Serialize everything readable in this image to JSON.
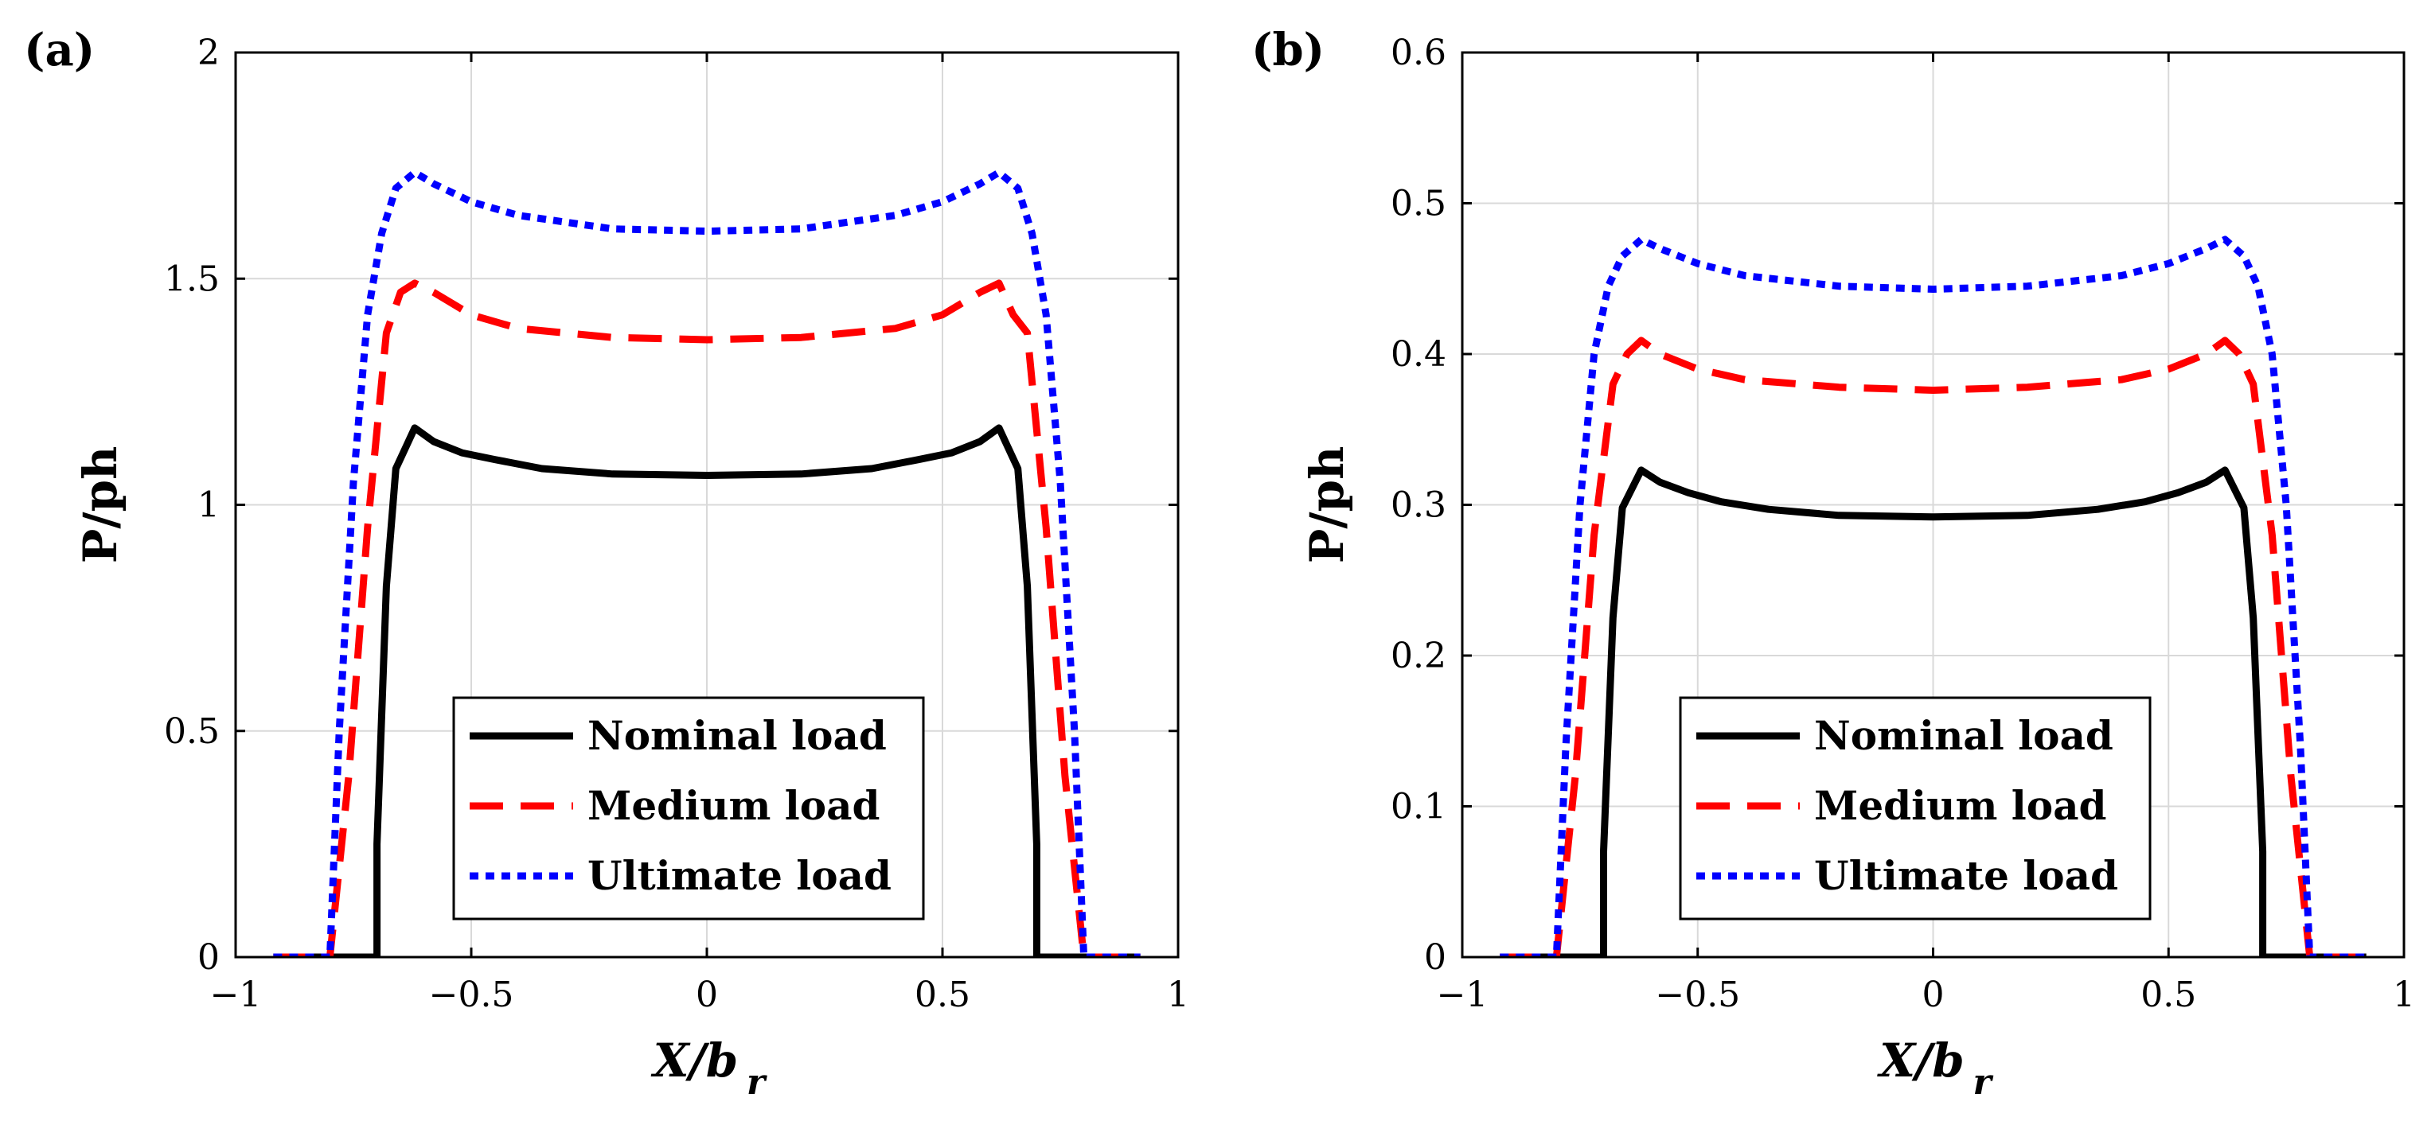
{
  "chart_data": [
    {
      "panel_label": "(a)",
      "type": "line",
      "xlabel": "X/b",
      "xlabel_subscript": "r",
      "ylabel": "P/ph",
      "xlim": [
        -1,
        1
      ],
      "ylim": [
        0,
        2
      ],
      "xticks": [
        -1,
        -0.5,
        0,
        0.5,
        1
      ],
      "xtick_labels": [
        "−1",
        "−0.5",
        "0",
        "0.5",
        "1"
      ],
      "yticks": [
        0,
        0.5,
        1,
        1.5,
        2
      ],
      "ytick_labels": [
        "0",
        "0.5",
        "1",
        "1.5",
        "2"
      ],
      "grid": true,
      "legend_position": "bottom-center",
      "series": [
        {
          "name": "Nominal load",
          "color": "#000000",
          "style": "solid",
          "x": [
            -0.92,
            -0.7,
            -0.7,
            -0.68,
            -0.66,
            -0.62,
            -0.58,
            -0.52,
            -0.45,
            -0.35,
            -0.2,
            0,
            0.2,
            0.35,
            0.45,
            0.52,
            0.58,
            0.62,
            0.66,
            0.68,
            0.7,
            0.7,
            0.92
          ],
          "y": [
            0,
            0,
            0.25,
            0.82,
            1.08,
            1.17,
            1.14,
            1.115,
            1.1,
            1.08,
            1.068,
            1.065,
            1.068,
            1.08,
            1.1,
            1.115,
            1.14,
            1.17,
            1.08,
            0.82,
            0.25,
            0,
            0
          ]
        },
        {
          "name": "Medium load",
          "color": "#ff0000",
          "style": "dashed",
          "x": [
            -0.92,
            -0.8,
            -0.76,
            -0.72,
            -0.68,
            -0.65,
            -0.62,
            -0.58,
            -0.5,
            -0.4,
            -0.2,
            0,
            0.2,
            0.4,
            0.5,
            0.58,
            0.62,
            0.65,
            0.68,
            0.72,
            0.76,
            0.8,
            0.92
          ],
          "y": [
            0,
            0,
            0.4,
            0.95,
            1.38,
            1.47,
            1.49,
            1.47,
            1.42,
            1.39,
            1.37,
            1.365,
            1.37,
            1.39,
            1.42,
            1.47,
            1.49,
            1.42,
            1.38,
            0.95,
            0.4,
            0,
            0
          ]
        },
        {
          "name": "Ultimate load",
          "color": "#0000ff",
          "style": "dotted",
          "x": [
            -0.92,
            -0.8,
            -0.78,
            -0.75,
            -0.72,
            -0.69,
            -0.66,
            -0.62,
            -0.58,
            -0.5,
            -0.4,
            -0.2,
            0,
            0.2,
            0.4,
            0.5,
            0.58,
            0.62,
            0.66,
            0.69,
            0.72,
            0.75,
            0.78,
            0.8,
            0.92
          ],
          "y": [
            0,
            0,
            0.5,
            1.05,
            1.42,
            1.6,
            1.7,
            1.735,
            1.71,
            1.67,
            1.64,
            1.61,
            1.605,
            1.61,
            1.64,
            1.67,
            1.71,
            1.735,
            1.7,
            1.6,
            1.42,
            1.05,
            0.5,
            0,
            0
          ]
        }
      ]
    },
    {
      "panel_label": "(b)",
      "type": "line",
      "xlabel": "X/b",
      "xlabel_subscript": "r",
      "ylabel": "P/ph",
      "xlim": [
        -1,
        1
      ],
      "ylim": [
        0,
        0.6
      ],
      "xticks": [
        -1,
        -0.5,
        0,
        0.5,
        1
      ],
      "xtick_labels": [
        "−1",
        "−0.5",
        "0",
        "0.5",
        "1"
      ],
      "yticks": [
        0,
        0.1,
        0.2,
        0.3,
        0.4,
        0.5,
        0.6
      ],
      "ytick_labels": [
        "0",
        "0.1",
        "0.2",
        "0.3",
        "0.4",
        "0.5",
        "0.6"
      ],
      "grid": true,
      "legend_position": "bottom-center",
      "series": [
        {
          "name": "Nominal load",
          "color": "#000000",
          "style": "solid",
          "x": [
            -0.92,
            -0.7,
            -0.7,
            -0.68,
            -0.66,
            -0.62,
            -0.58,
            -0.52,
            -0.45,
            -0.35,
            -0.2,
            0,
            0.2,
            0.35,
            0.45,
            0.52,
            0.58,
            0.62,
            0.66,
            0.68,
            0.7,
            0.7,
            0.92
          ],
          "y": [
            0,
            0,
            0.07,
            0.225,
            0.298,
            0.323,
            0.315,
            0.308,
            0.302,
            0.297,
            0.293,
            0.292,
            0.293,
            0.297,
            0.302,
            0.308,
            0.315,
            0.323,
            0.298,
            0.225,
            0.07,
            0,
            0
          ]
        },
        {
          "name": "Medium load",
          "color": "#ff0000",
          "style": "dashed",
          "x": [
            -0.92,
            -0.8,
            -0.76,
            -0.72,
            -0.68,
            -0.65,
            -0.62,
            -0.58,
            -0.5,
            -0.4,
            -0.2,
            0,
            0.2,
            0.4,
            0.5,
            0.58,
            0.62,
            0.65,
            0.68,
            0.72,
            0.76,
            0.8,
            0.92
          ],
          "y": [
            0,
            0,
            0.12,
            0.28,
            0.38,
            0.4,
            0.409,
            0.4,
            0.39,
            0.383,
            0.378,
            0.376,
            0.378,
            0.383,
            0.39,
            0.4,
            0.409,
            0.4,
            0.38,
            0.28,
            0.12,
            0,
            0
          ]
        },
        {
          "name": "Ultimate load",
          "color": "#0000ff",
          "style": "dotted",
          "x": [
            -0.92,
            -0.8,
            -0.78,
            -0.75,
            -0.72,
            -0.69,
            -0.66,
            -0.62,
            -0.58,
            -0.5,
            -0.4,
            -0.2,
            0,
            0.2,
            0.4,
            0.5,
            0.58,
            0.62,
            0.66,
            0.69,
            0.72,
            0.75,
            0.78,
            0.8,
            0.92
          ],
          "y": [
            0,
            0,
            0.14,
            0.3,
            0.4,
            0.445,
            0.465,
            0.476,
            0.47,
            0.46,
            0.452,
            0.445,
            0.443,
            0.445,
            0.452,
            0.46,
            0.47,
            0.476,
            0.465,
            0.445,
            0.4,
            0.3,
            0.14,
            0,
            0
          ]
        }
      ]
    }
  ]
}
